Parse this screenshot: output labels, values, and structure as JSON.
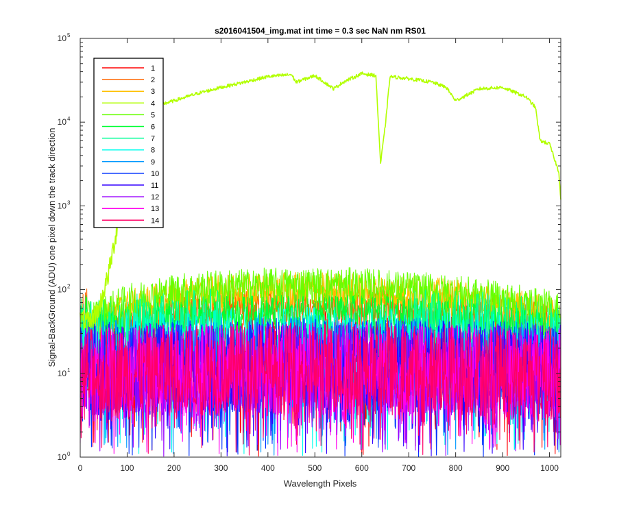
{
  "chart_data": {
    "type": "line",
    "title": "s2016041504_img.mat int time = 0.3 sec  NaN nm RS01",
    "xlabel": "Wavelength Pixels",
    "ylabel": "Signal-BackGround (ADU) one pixel down the track direction",
    "xlim": [
      0,
      1024
    ],
    "ylim": [
      1,
      100000
    ],
    "yscale": "log",
    "grid": false,
    "legend_position": "top-left",
    "x_ticks": [
      "0",
      "100",
      "200",
      "300",
      "400",
      "500",
      "600",
      "700",
      "800",
      "900",
      "1000"
    ],
    "x_tick_values": [
      0,
      100,
      200,
      300,
      400,
      500,
      600,
      700,
      800,
      900,
      1000
    ],
    "y_ticks": [
      {
        "base": "10",
        "exp": "0",
        "value": 1
      },
      {
        "base": "10",
        "exp": "1",
        "value": 10
      },
      {
        "base": "10",
        "exp": "2",
        "value": 100
      },
      {
        "base": "10",
        "exp": "3",
        "value": 1000
      },
      {
        "base": "10",
        "exp": "4",
        "value": 10000
      },
      {
        "base": "10",
        "exp": "5",
        "value": 100000
      }
    ],
    "series": [
      {
        "name": "1",
        "color": "#ff0000",
        "x": [
          0,
          100,
          200,
          300,
          400,
          500,
          600,
          700,
          800,
          900,
          1000,
          1024
        ],
        "y": [
          15,
          15,
          16,
          16,
          17,
          17,
          17,
          17,
          16,
          16,
          15,
          15
        ]
      },
      {
        "name": "2",
        "color": "#ff6600",
        "x": [
          0,
          100,
          200,
          300,
          400,
          500,
          600,
          700,
          800,
          900,
          1000,
          1024
        ],
        "y": [
          28,
          45,
          55,
          60,
          62,
          63,
          62,
          60,
          55,
          50,
          40,
          35
        ]
      },
      {
        "name": "3",
        "color": "#ffc000",
        "x": [
          0,
          100,
          200,
          300,
          400,
          500,
          600,
          700,
          800,
          900,
          1000,
          1024
        ],
        "y": [
          35,
          60,
          80,
          90,
          95,
          98,
          95,
          90,
          80,
          65,
          50,
          40
        ]
      },
      {
        "name": "4",
        "color": "#b2ff00",
        "x": [
          0,
          20,
          40,
          60,
          80,
          100,
          120,
          150,
          200,
          250,
          300,
          350,
          400,
          450,
          460,
          500,
          540,
          560,
          600,
          630,
          640,
          650,
          660,
          700,
          750,
          780,
          800,
          850,
          900,
          950,
          970,
          980,
          1000,
          1020,
          1024
        ],
        "y": [
          45,
          40,
          60,
          150,
          600,
          5000,
          11000,
          15000,
          18000,
          22000,
          26000,
          30000,
          35000,
          37000,
          30000,
          36000,
          25000,
          30000,
          38000,
          36000,
          3200,
          9000,
          35000,
          33000,
          30000,
          26000,
          18000,
          25000,
          26000,
          20000,
          15000,
          6000,
          5500,
          2500,
          1200
        ]
      },
      {
        "name": "5",
        "color": "#66ff00",
        "x": [
          0,
          100,
          200,
          300,
          400,
          500,
          600,
          700,
          800,
          900,
          1000,
          1024
        ],
        "y": [
          40,
          70,
          95,
          105,
          110,
          112,
          110,
          100,
          90,
          75,
          60,
          55
        ]
      },
      {
        "name": "6",
        "color": "#00ff33",
        "x": [
          0,
          100,
          200,
          300,
          400,
          500,
          600,
          700,
          800,
          900,
          1000,
          1024
        ],
        "y": [
          28,
          38,
          45,
          50,
          52,
          53,
          52,
          50,
          45,
          40,
          33,
          30
        ]
      },
      {
        "name": "7",
        "color": "#00ff99",
        "x": [
          0,
          100,
          200,
          300,
          400,
          500,
          600,
          700,
          800,
          900,
          1000,
          1024
        ],
        "y": [
          20,
          25,
          28,
          30,
          31,
          32,
          31,
          30,
          28,
          26,
          22,
          20
        ]
      },
      {
        "name": "8",
        "color": "#00ffee",
        "x": [
          0,
          100,
          200,
          300,
          400,
          500,
          600,
          700,
          800,
          900,
          1000,
          1024
        ],
        "y": [
          14,
          15,
          16,
          17,
          17,
          18,
          17,
          17,
          16,
          15,
          14,
          14
        ]
      },
      {
        "name": "9",
        "color": "#0099ff",
        "x": [
          0,
          100,
          200,
          300,
          400,
          500,
          600,
          700,
          800,
          900,
          1000,
          1024
        ],
        "y": [
          12,
          13,
          13,
          14,
          14,
          14,
          14,
          14,
          13,
          13,
          12,
          12
        ]
      },
      {
        "name": "10",
        "color": "#0033ff",
        "x": [
          0,
          100,
          200,
          300,
          400,
          500,
          600,
          700,
          800,
          900,
          1000,
          1024
        ],
        "y": [
          11,
          12,
          12,
          12,
          13,
          13,
          13,
          12,
          12,
          12,
          11,
          11
        ]
      },
      {
        "name": "11",
        "color": "#3300ff",
        "x": [
          0,
          100,
          200,
          300,
          400,
          500,
          600,
          700,
          800,
          900,
          1000,
          1024
        ],
        "y": [
          11,
          11,
          12,
          12,
          12,
          12,
          12,
          12,
          12,
          11,
          11,
          11
        ]
      },
      {
        "name": "12",
        "color": "#9900ff",
        "x": [
          0,
          100,
          200,
          300,
          400,
          500,
          600,
          700,
          800,
          900,
          1000,
          1024
        ],
        "y": [
          10,
          11,
          11,
          11,
          12,
          12,
          12,
          11,
          11,
          11,
          10,
          10
        ]
      },
      {
        "name": "13",
        "color": "#ff00ee",
        "x": [
          0,
          100,
          200,
          300,
          400,
          500,
          600,
          700,
          800,
          900,
          1000,
          1024
        ],
        "y": [
          10,
          10,
          11,
          11,
          11,
          11,
          11,
          11,
          11,
          10,
          10,
          10
        ]
      },
      {
        "name": "14",
        "color": "#ff0066",
        "x": [
          0,
          100,
          200,
          300,
          400,
          500,
          600,
          700,
          800,
          900,
          1000,
          1024
        ],
        "y": [
          10,
          10,
          11,
          11,
          11,
          12,
          11,
          11,
          11,
          10,
          10,
          10
        ]
      }
    ]
  }
}
